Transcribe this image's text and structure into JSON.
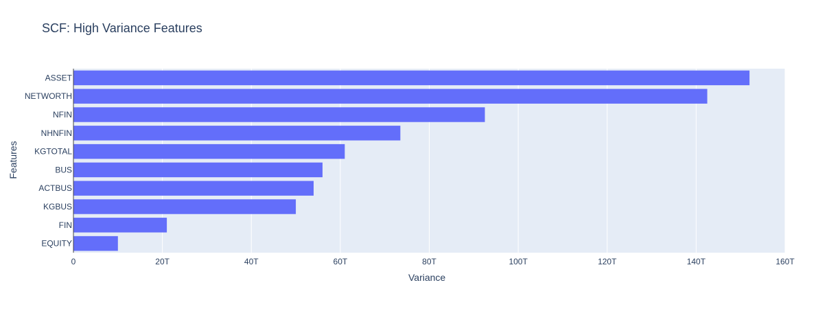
{
  "chart_data": {
    "type": "bar",
    "orientation": "horizontal",
    "title": "SCF: High Variance Features",
    "xlabel": "Variance",
    "ylabel": "Features",
    "categories": [
      "ASSET",
      "NETWORTH",
      "NFIN",
      "NHNFIN",
      "KGTOTAL",
      "BUS",
      "ACTBUS",
      "KGBUS",
      "FIN",
      "EQUITY"
    ],
    "values": [
      152,
      142.5,
      92.5,
      73.5,
      61,
      56,
      54,
      50,
      21,
      10
    ],
    "value_unit": "T",
    "xlim": [
      0,
      160
    ],
    "xticks": [
      0,
      20,
      40,
      60,
      80,
      100,
      120,
      140,
      160
    ],
    "xtick_labels": [
      "0",
      "20T",
      "40T",
      "60T",
      "80T",
      "100T",
      "120T",
      "140T",
      "160T"
    ],
    "grid": true,
    "colors": {
      "bar": "#636efa",
      "plot_bg": "#e5ecf6",
      "grid": "#ffffff",
      "text": "#2a3f5f"
    }
  }
}
